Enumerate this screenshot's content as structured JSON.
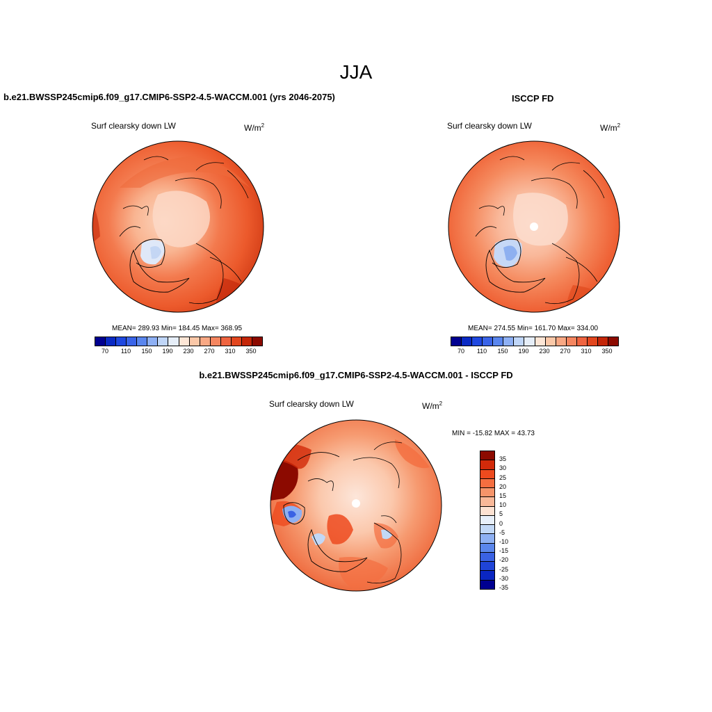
{
  "header": {
    "season": "JJA"
  },
  "panels": {
    "model": {
      "title": "b.e21.BWSSP245cmip6.f09_g17.CMIP6-SSP2-4.5-WACCM.001 (yrs 2046-2075)",
      "variable": "Surf clearsky down LW",
      "units_base": "W/m",
      "units_exp": "2",
      "mean": "289.93",
      "min": "184.45",
      "max": "368.95",
      "stats_text": "MEAN= 289.93  Min= 184.45  Max= 368.95"
    },
    "obs": {
      "title": "ISCCP FD",
      "variable": "Surf clearsky down LW",
      "units_base": "W/m",
      "units_exp": "2",
      "mean": "274.55",
      "min": "161.70",
      "max": "334.00",
      "stats_text": "MEAN= 274.55  Min= 161.70  Max= 334.00"
    },
    "diff": {
      "title": "b.e21.BWSSP245cmip6.f09_g17.CMIP6-SSP2-4.5-WACCM.001 - ISCCP FD",
      "variable": "Surf clearsky down LW",
      "units_base": "W/m",
      "units_exp": "2",
      "minmax_text": "MIN = -15.82 MAX =  43.73",
      "min": "-15.82",
      "max": "43.73"
    }
  },
  "colorbars": {
    "absolute": {
      "colors": [
        "#000090",
        "#0a2ac4",
        "#1f48e0",
        "#3a64e8",
        "#5a86ee",
        "#8eb0f4",
        "#c0d6f8",
        "#e6eef8",
        "#fde6d6",
        "#fbc8a8",
        "#f8a884",
        "#f58660",
        "#ef6440",
        "#e2461e",
        "#c42608",
        "#8c0a00"
      ],
      "tick_labels": [
        "70",
        "110",
        "150",
        "190",
        "230",
        "270",
        "310",
        "350"
      ]
    },
    "difference": {
      "colors": [
        "#8c0a00",
        "#d22a0a",
        "#ed4a1e",
        "#f46e40",
        "#f6946a",
        "#f9b898",
        "#fde2d2",
        "#e8f0fa",
        "#c2d8f6",
        "#8eb0f2",
        "#5a86ec",
        "#3a62e4",
        "#1f44d8",
        "#0a26c2",
        "#000090"
      ],
      "tick_labels": [
        "35",
        "30",
        "25",
        "20",
        "15",
        "10",
        "5",
        "0",
        "-5",
        "-10",
        "-15",
        "-20",
        "-25",
        "-30",
        "-35"
      ]
    }
  }
}
